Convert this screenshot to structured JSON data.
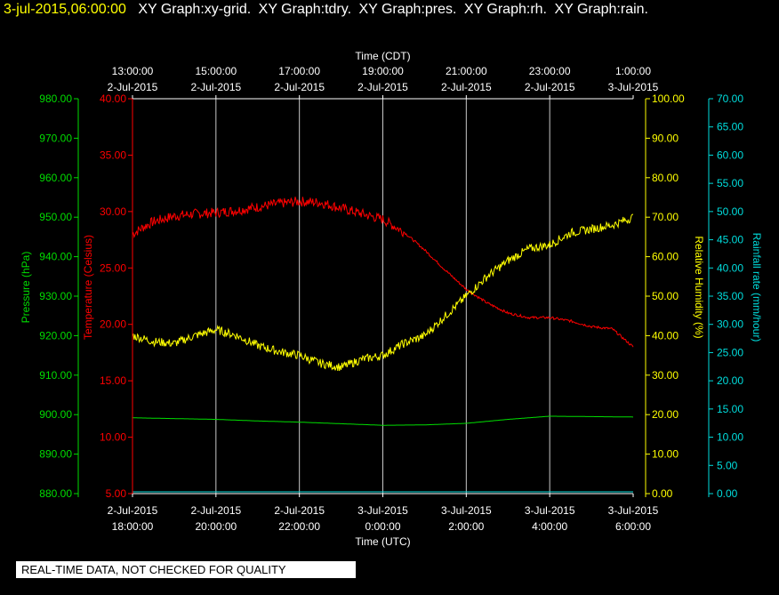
{
  "header": {
    "timestamp": "3-jul-2015,06:00:00",
    "graph_labels": [
      "XY Graph:xy-grid.",
      "XY Graph:tdry.",
      "XY Graph:pres.",
      "XY Graph:rh.",
      "XY Graph:rain."
    ]
  },
  "disclaimer": "REAL-TIME DATA, NOT CHECKED FOR QUALITY",
  "colors": {
    "background": "#000000",
    "grid": "#c8c8c8",
    "temperature": "#ff0000",
    "pressure": "#00dd00",
    "humidity": "#ffff00",
    "rainfall": "#00dddd",
    "header_timestamp": "#ffff00"
  },
  "chart_data": {
    "type": "line",
    "x_top": {
      "title": "Time (CDT)",
      "ticks": [
        {
          "time": "13:00:00",
          "date": "2-Jul-2015"
        },
        {
          "time": "15:00:00",
          "date": "2-Jul-2015"
        },
        {
          "time": "17:00:00",
          "date": "2-Jul-2015"
        },
        {
          "time": "19:00:00",
          "date": "2-Jul-2015"
        },
        {
          "time": "21:00:00",
          "date": "2-Jul-2015"
        },
        {
          "time": "23:00:00",
          "date": "2-Jul-2015"
        },
        {
          "time": "1:00:00",
          "date": "3-Jul-2015"
        }
      ]
    },
    "x_bottom": {
      "title": "Time (UTC)",
      "ticks": [
        {
          "date": "2-Jul-2015",
          "time": "18:00:00"
        },
        {
          "date": "2-Jul-2015",
          "time": "20:00:00"
        },
        {
          "date": "2-Jul-2015",
          "time": "22:00:00"
        },
        {
          "date": "3-Jul-2015",
          "time": "0:00:00"
        },
        {
          "date": "3-Jul-2015",
          "time": "2:00:00"
        },
        {
          "date": "3-Jul-2015",
          "time": "4:00:00"
        },
        {
          "date": "3-Jul-2015",
          "time": "6:00:00"
        }
      ],
      "range_hours": [
        0,
        12
      ]
    },
    "axes": {
      "pressure": {
        "label": "Pressure (hPa)",
        "min": 880,
        "max": 980,
        "ticks": [
          "880.00",
          "890.00",
          "900.00",
          "910.00",
          "920.00",
          "930.00",
          "940.00",
          "950.00",
          "960.00",
          "970.00",
          "980.00"
        ]
      },
      "temperature": {
        "label": "Temperature (Celsius)",
        "min": 5,
        "max": 40,
        "ticks": [
          "5.00",
          "10.00",
          "15.00",
          "20.00",
          "25.00",
          "30.00",
          "35.00",
          "40.00"
        ]
      },
      "humidity": {
        "label": "Relative Humidity (%)",
        "min": 0,
        "max": 100,
        "ticks": [
          "0.00",
          "10.00",
          "20.00",
          "30.00",
          "40.00",
          "50.00",
          "60.00",
          "70.00",
          "80.00",
          "90.00",
          "100.00"
        ]
      },
      "rainfall": {
        "label": "Rainfall rate (mm/hour)",
        "min": 0,
        "max": 70,
        "ticks": [
          "0.00",
          "5.00",
          "10.00",
          "15.00",
          "20.00",
          "25.00",
          "30.00",
          "35.00",
          "40.00",
          "45.00",
          "50.00",
          "55.00",
          "60.00",
          "65.00",
          "70.00"
        ]
      }
    },
    "grid": true,
    "series": [
      {
        "key": "temperature",
        "name": "Temperature (Celsius)",
        "x": [
          0,
          0.25,
          0.5,
          1,
          1.5,
          2,
          2.5,
          3,
          3.5,
          4,
          4.5,
          5,
          5.5,
          6,
          6.5,
          7,
          7.5,
          8,
          8.5,
          9,
          9.5,
          10,
          10.5,
          11,
          11.5,
          12
        ],
        "y": [
          28.0,
          28.6,
          29.1,
          29.6,
          29.8,
          29.9,
          30.1,
          30.4,
          30.7,
          30.9,
          30.8,
          30.3,
          29.8,
          29.3,
          28.2,
          26.6,
          24.8,
          23.1,
          21.9,
          21.0,
          20.6,
          20.6,
          20.3,
          19.8,
          19.6,
          18.0
        ]
      },
      {
        "key": "humidity",
        "name": "Relative Humidity (%)",
        "x": [
          0,
          0.5,
          1,
          1.5,
          2,
          2.5,
          3,
          3.5,
          4,
          4.5,
          5,
          5.5,
          6,
          6.5,
          7,
          7.5,
          8,
          8.5,
          9,
          9.5,
          10,
          10.5,
          11,
          11.5,
          12
        ],
        "y": [
          40,
          38.5,
          38,
          40,
          41.5,
          40,
          37.5,
          36,
          35,
          33,
          32,
          34,
          35,
          38,
          40,
          45,
          50,
          55,
          59,
          62,
          63,
          66,
          67,
          68,
          70
        ]
      },
      {
        "key": "pressure",
        "name": "Pressure (hPa)",
        "x": [
          0,
          1,
          2,
          3,
          4,
          5,
          6,
          7,
          8,
          9,
          10,
          11,
          12
        ],
        "y": [
          899.2,
          899.0,
          898.8,
          898.4,
          898.1,
          897.7,
          897.3,
          897.4,
          897.8,
          898.8,
          899.6,
          899.5,
          899.4
        ]
      },
      {
        "key": "rainfall",
        "name": "Rainfall rate (mm/hour)",
        "x": [
          0,
          12
        ],
        "y": [
          0,
          0
        ]
      }
    ]
  }
}
